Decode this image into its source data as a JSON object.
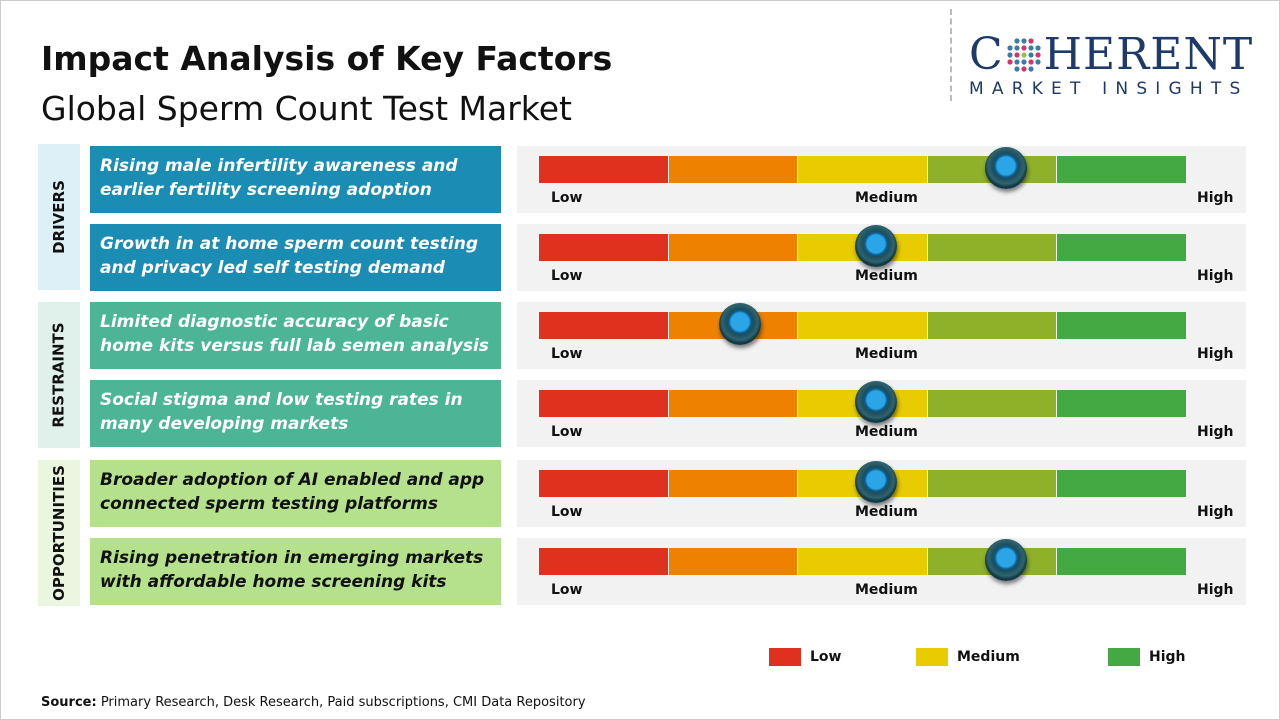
{
  "title": "Impact Analysis of Key Factors",
  "subtitle": "Global Sperm Count Test Market",
  "logo": {
    "name": "COHERENT",
    "tagline": "MARKET INSIGHTS"
  },
  "chart_data": {
    "type": "gauge-bar",
    "scale_labels": [
      "Low",
      "Medium",
      "High"
    ],
    "segment_colors": [
      "#e0301e",
      "#ee8200",
      "#e8cb00",
      "#8fb12a",
      "#44a843"
    ],
    "categories": [
      {
        "name": "DRIVERS",
        "bg": "#ddf0f8",
        "box": "#1b8db5",
        "text_color": "#ffffff"
      },
      {
        "name": "RESTRAINTS",
        "bg": "#dff1ea",
        "box": "#4cb596",
        "text_color": "#ffffff"
      },
      {
        "name": "OPPORTUNITIES",
        "bg": "#ebf6e0",
        "box": "#b5e08c",
        "text_color": "#111111"
      }
    ],
    "factors": [
      {
        "category": 0,
        "label": "Rising male infertility awareness and earlier fertility screening adoption",
        "impact": 0.72
      },
      {
        "category": 0,
        "label": "Growth in at home sperm count testing and privacy led self testing demand",
        "impact": 0.52
      },
      {
        "category": 1,
        "label": "Limited diagnostic accuracy of basic home kits versus full lab semen analysis",
        "impact": 0.31
      },
      {
        "category": 1,
        "label": "Social stigma and low testing rates in many developing markets",
        "impact": 0.52
      },
      {
        "category": 2,
        "label": "Broader adoption of AI enabled and app connected sperm testing platforms",
        "impact": 0.52
      },
      {
        "category": 2,
        "label": "Rising penetration in emerging markets with affordable home screening kits",
        "impact": 0.72
      }
    ],
    "legend": [
      {
        "label": "Low",
        "color": "#e0301e"
      },
      {
        "label": "Medium",
        "color": "#e8cb00"
      },
      {
        "label": "High",
        "color": "#44a843"
      }
    ]
  },
  "source": {
    "label": "Source:",
    "text": " Primary Research, Desk Research, Paid subscriptions, CMI Data Repository"
  }
}
